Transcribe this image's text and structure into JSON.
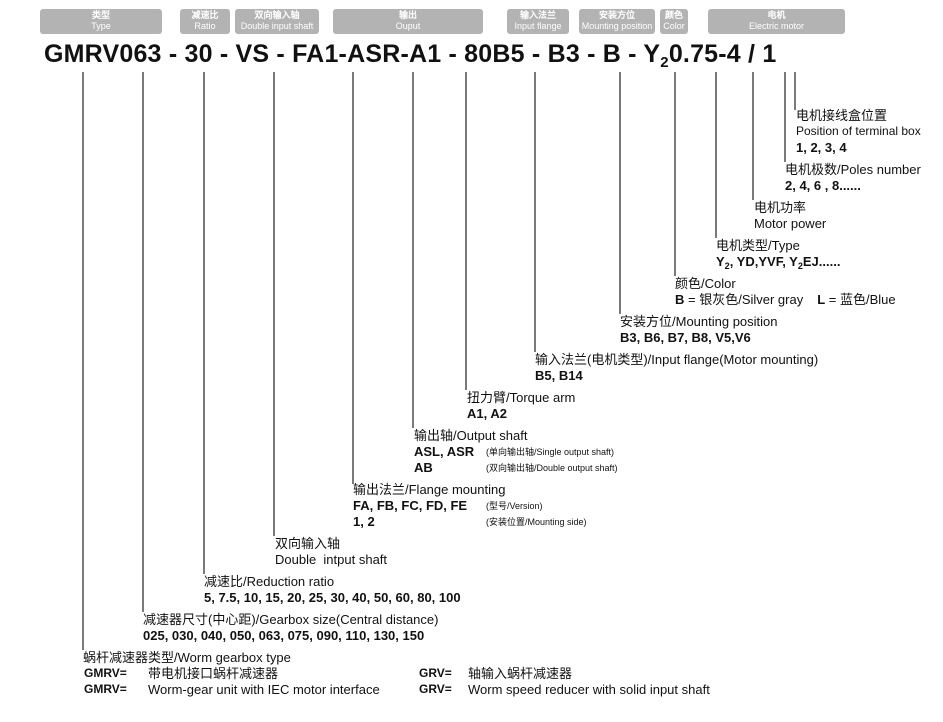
{
  "headers": [
    {
      "zh": "类型",
      "en": "Type"
    },
    {
      "zh": "减速比",
      "en": "Ratio"
    },
    {
      "zh": "双向输入轴",
      "en": "Double input shaft"
    },
    {
      "zh": "输出",
      "en": "Ouput"
    },
    {
      "zh": "输入法兰",
      "en": "Input flange"
    },
    {
      "zh": "安装方位",
      "en": "Mounting position"
    },
    {
      "zh": "颜色",
      "en": "Color"
    },
    {
      "zh": "电机",
      "en": "Electric motor"
    }
  ],
  "model_code": {
    "p1": "GMRV063",
    "p2": " - 30 - ",
    "p3": "VS",
    "p4": " - ",
    "p5": "FA1-ASR-A1",
    "p6": " - ",
    "p7": "80B5",
    "p8": " - ",
    "p9": "B3",
    "p10": " - ",
    "p11": "B",
    "p12": " - Y",
    "p13": "2",
    "p14": "0.75-4 / 1"
  },
  "terminal_box": {
    "label_zh": "电机接线盒位置",
    "label_en": "Position of terminal box",
    "values": "1, 2, 3, 4"
  },
  "poles": {
    "label": "电机极数/Poles number",
    "values": "2, 4, 6 , 8......"
  },
  "motor_power": {
    "label_zh": "电机功率",
    "label_en": "Motor power"
  },
  "motor_type": {
    "label": "电机类型/Type",
    "v1": "Y",
    "v1sub": "2",
    "v2": ", YD,YVF, Y",
    "v2sub": "2",
    "v3": "EJ......"
  },
  "color": {
    "label": "颜色/Color",
    "b_code": "B",
    "b_desc": " = 银灰色/Silver gray",
    "l_code": "L",
    "l_desc": " = 蓝色/Blue"
  },
  "mounting": {
    "label": "安装方位/Mounting position",
    "values": "B3, B6, B7, B8, V5,V6"
  },
  "input_flange": {
    "label": "输入法兰(电机类型)/Input flange(Motor mounting)",
    "values": "B5, B14"
  },
  "torque_arm": {
    "label": "扭力臂/Torque arm",
    "values": "A1, A2"
  },
  "output_shaft": {
    "label": "输出轴/Output shaft",
    "v1": "ASL, ASR",
    "n1": "(单向输出轴/Single output shaft)",
    "v2": "AB",
    "n2": "(双向输出轴/Double output shaft)"
  },
  "flange_mounting": {
    "label": "输出法兰/Flange mounting",
    "v1": "FA, FB, FC, FD, FE",
    "n1": "(型号/Version)",
    "v2": "1, 2",
    "n2": "(安装位置/Mounting side)"
  },
  "double_shaft": {
    "label_zh": "双向输入轴",
    "label_en": "Double  intput shaft"
  },
  "ratio": {
    "label": "减速比/Reduction ratio",
    "values": "5, 7.5, 10, 15, 20, 25, 30, 40, 50, 60, 80, 100"
  },
  "gearbox_size": {
    "label": "减速器尺寸(中心距)/Gearbox size(Central distance)",
    "values": "025, 030, 040, 050, 063, 075, 090, 110, 130, 150"
  },
  "worm_type": {
    "label": "蜗杆减速器类型/Worm gearbox type",
    "gmrv_code": "GMRV=",
    "gmrv_zh": "带电机接口蜗杆减速器",
    "gmrv_en": "Worm-gear unit with IEC motor interface",
    "grv_code": "GRV=",
    "grv_zh": "轴输入蜗杆减速器",
    "grv_en": "Worm speed reducer with solid input shaft"
  }
}
